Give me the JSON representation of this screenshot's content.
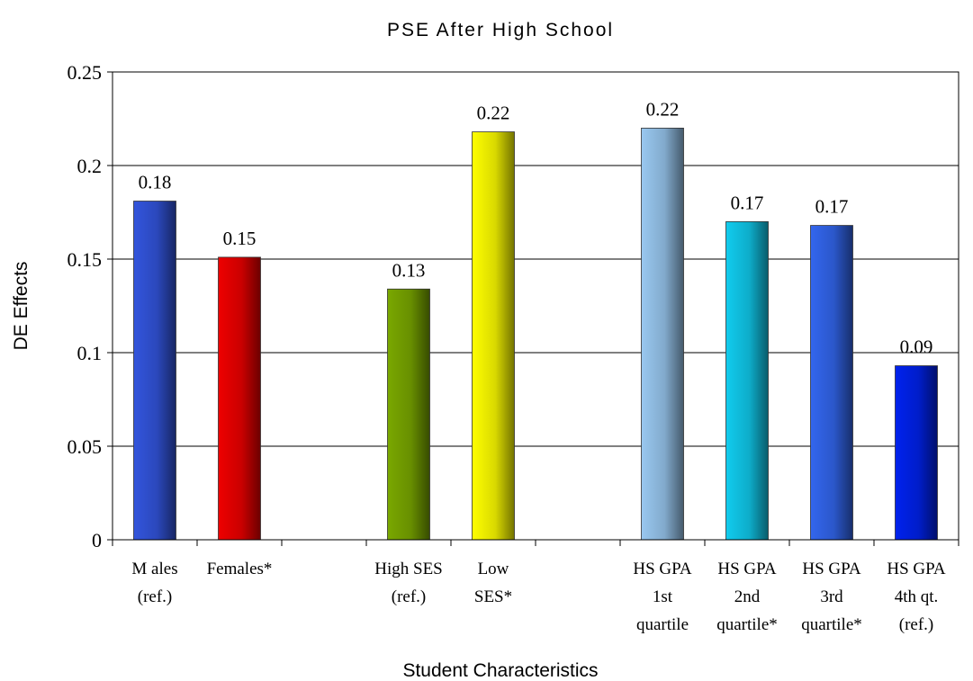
{
  "chart_data": {
    "type": "bar",
    "title": "PSE After High School",
    "xlabel": "Student Characteristics",
    "ylabel": "DE Effects",
    "ylim": [
      0,
      0.25
    ],
    "yticks": [
      "0",
      "0.05",
      "0.1",
      "0.15",
      "0.2",
      "0.25"
    ],
    "grid": true,
    "legend": "none",
    "categories": [
      {
        "lines": [
          "M ales",
          "(ref.)"
        ],
        "value": 0.181,
        "label": "0.18",
        "color": "#3355dd"
      },
      {
        "lines": [
          "Females*"
        ],
        "value": 0.151,
        "label": "0.15",
        "color": "#ee0000"
      },
      {
        "lines": [],
        "value": null,
        "label": "",
        "color": ""
      },
      {
        "lines": [
          "High SES",
          "(ref.)"
        ],
        "value": 0.134,
        "label": "0.13",
        "color": "#7aa800"
      },
      {
        "lines": [
          "Low",
          "SES*"
        ],
        "value": 0.218,
        "label": "0.22",
        "color": "#ffff00"
      },
      {
        "lines": [],
        "value": null,
        "label": "",
        "color": ""
      },
      {
        "lines": [
          "HS GPA",
          "1st",
          "quartile"
        ],
        "value": 0.22,
        "label": "0.22",
        "color": "#99c8f0"
      },
      {
        "lines": [
          "HS GPA",
          "2nd",
          "quartile*"
        ],
        "value": 0.17,
        "label": "0.17",
        "color": "#11ccee"
      },
      {
        "lines": [
          "HS GPA",
          "3rd",
          "quartile*"
        ],
        "value": 0.168,
        "label": "0.17",
        "color": "#3366ee"
      },
      {
        "lines": [
          "HS GPA",
          "4th qt.",
          "(ref.)"
        ],
        "value": 0.093,
        "label": "0.09",
        "color": "#0022ee"
      }
    ]
  }
}
